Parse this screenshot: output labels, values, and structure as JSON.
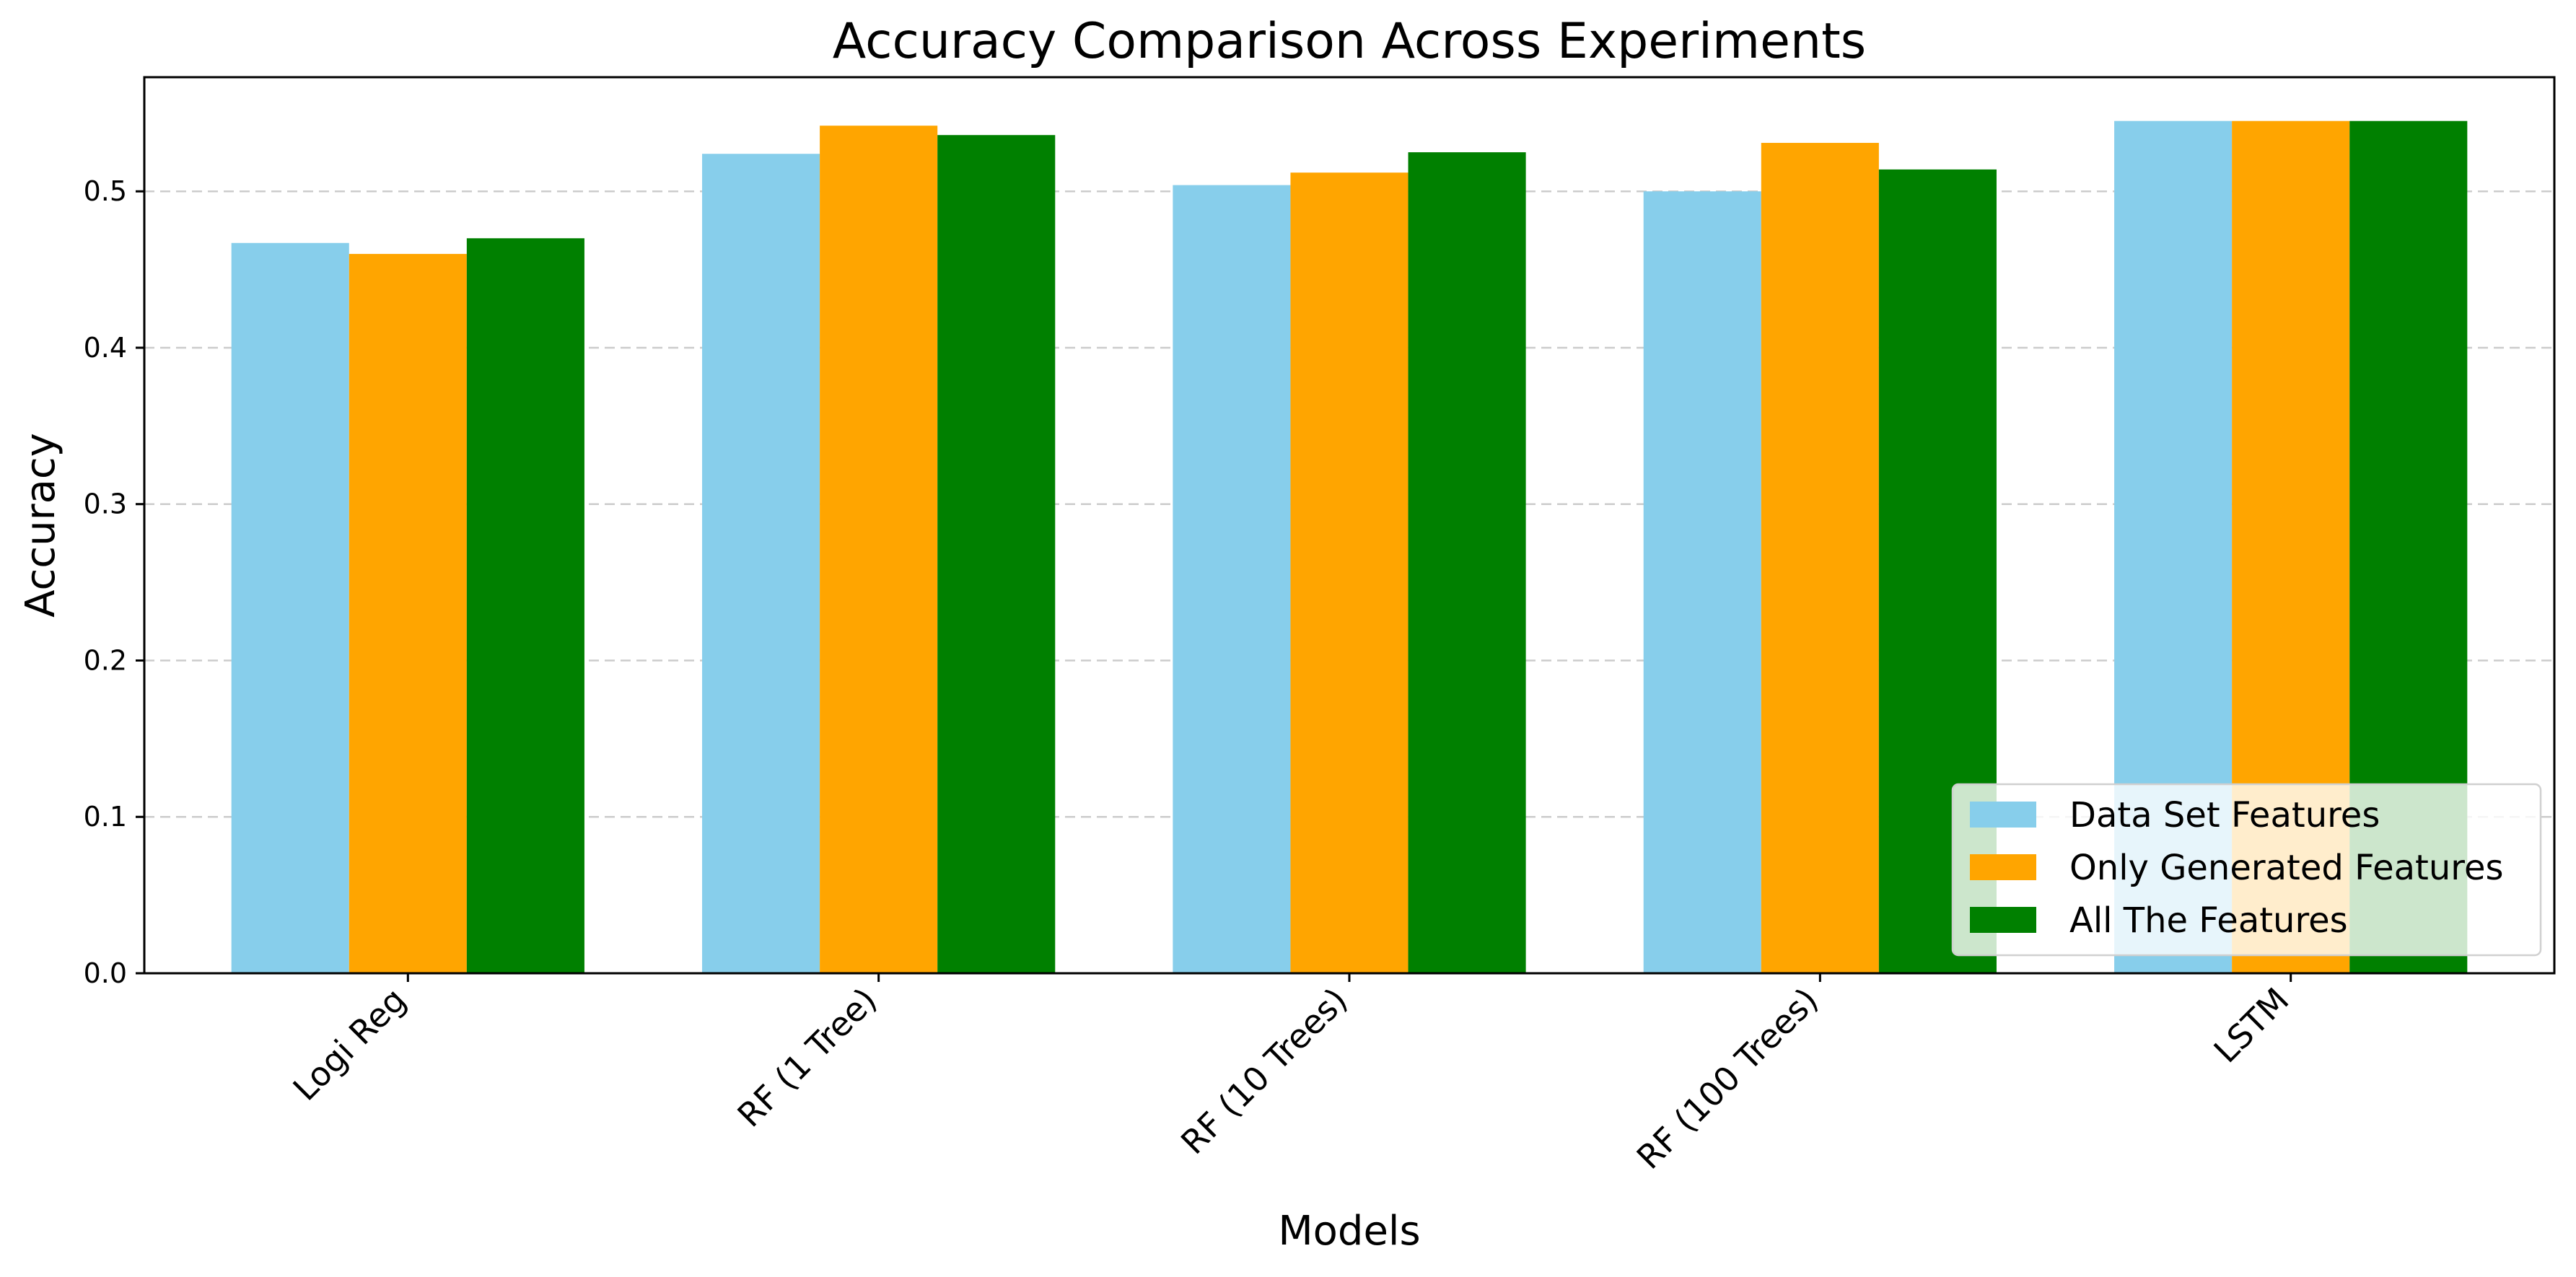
{
  "chart_data": {
    "type": "bar",
    "title": "Accuracy Comparison Across Experiments",
    "xlabel": "Models",
    "ylabel": "Accuracy",
    "ylim": [
      0,
      0.573
    ],
    "yticks": [
      "0.0",
      "0.1",
      "0.2",
      "0.3",
      "0.4",
      "0.5"
    ],
    "categories": [
      "Logi Reg",
      "RF (1 Tree)",
      "RF (10 Trees)",
      "RF (100 Trees)",
      "LSTM"
    ],
    "series": [
      {
        "name": "Data Set Features",
        "color": "#87ceeb",
        "values": [
          0.467,
          0.524,
          0.504,
          0.5,
          0.545
        ]
      },
      {
        "name": "Only Generated Features",
        "color": "#ffa500",
        "values": [
          0.46,
          0.542,
          0.512,
          0.531,
          0.545
        ]
      },
      {
        "name": "All The Features",
        "color": "#008000",
        "values": [
          0.47,
          0.536,
          0.525,
          0.514,
          0.545
        ]
      }
    ],
    "grid": "y-dashed",
    "legend_position": "lower-right"
  }
}
